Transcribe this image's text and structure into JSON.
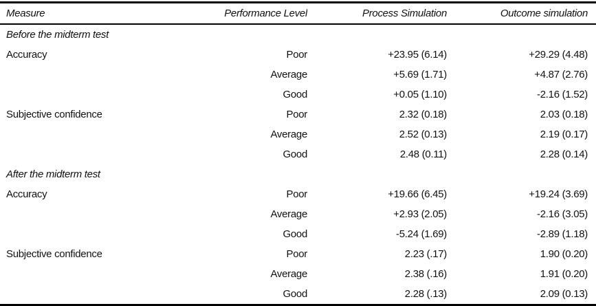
{
  "table": {
    "columns": {
      "measure": "Measure",
      "level": "Performance Level",
      "process": "Process Simulation",
      "outcome": "Outcome simulation"
    },
    "rows": [
      {
        "type": "section",
        "measure": "Before the midterm test",
        "level": "",
        "process": "",
        "outcome": ""
      },
      {
        "type": "data",
        "measure": "Accuracy",
        "level": "Poor",
        "process": "+23.95 (6.14)",
        "outcome": "+29.29 (4.48)"
      },
      {
        "type": "data",
        "measure": "",
        "level": "Average",
        "process": "+5.69 (1.71)",
        "outcome": "+4.87 (2.76)"
      },
      {
        "type": "data",
        "measure": "",
        "level": "Good",
        "process": "+0.05 (1.10)",
        "outcome": "-2.16 (1.52)"
      },
      {
        "type": "data",
        "measure": "Subjective confidence",
        "level": "Poor",
        "process": "2.32 (0.18)",
        "outcome": "2.03 (0.18)"
      },
      {
        "type": "data",
        "measure": "",
        "level": "Average",
        "process": "2.52 (0.13)",
        "outcome": "2.19 (0.17)"
      },
      {
        "type": "data",
        "measure": "",
        "level": "Good",
        "process": "2.48 (0.11)",
        "outcome": "2.28 (0.14)"
      },
      {
        "type": "section",
        "measure": "After the midterm test",
        "level": "",
        "process": "",
        "outcome": ""
      },
      {
        "type": "data",
        "measure": "Accuracy",
        "level": "Poor",
        "process": "+19.66 (6.45)",
        "outcome": "+19.24 (3.69)"
      },
      {
        "type": "data",
        "measure": "",
        "level": "Average",
        "process": "+2.93 (2.05)",
        "outcome": "-2.16 (3.05)"
      },
      {
        "type": "data",
        "measure": "",
        "level": "Good",
        "process": "-5.24 (1.69)",
        "outcome": "-2.89 (1.18)"
      },
      {
        "type": "data",
        "measure": "Subjective confidence",
        "level": "Poor",
        "process": "2.23 (.17)",
        "outcome": "1.90 (0.20)"
      },
      {
        "type": "data",
        "measure": "",
        "level": "Average",
        "process": "2.38 (.16)",
        "outcome": "1.91 (0.20)"
      },
      {
        "type": "data",
        "measure": "",
        "level": "Good",
        "process": "2.28 (.13)",
        "outcome": "2.09 (0.13)"
      }
    ]
  }
}
